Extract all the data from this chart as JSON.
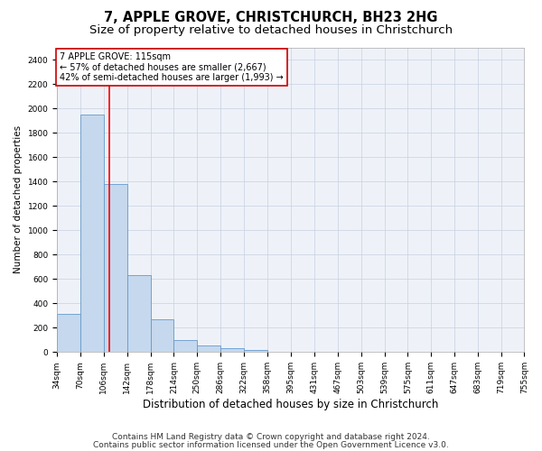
{
  "title1": "7, APPLE GROVE, CHRISTCHURCH, BH23 2HG",
  "title2": "Size of property relative to detached houses in Christchurch",
  "xlabel": "Distribution of detached houses by size in Christchurch",
  "ylabel": "Number of detached properties",
  "bar_values": [
    310,
    1950,
    1380,
    630,
    270,
    100,
    55,
    30,
    20,
    5,
    3,
    2,
    1,
    1,
    0,
    0,
    0,
    0,
    0,
    0
  ],
  "bin_edges": [
    34,
    70,
    106,
    142,
    178,
    214,
    250,
    286,
    322,
    358,
    395,
    431,
    467,
    503,
    539,
    575,
    611,
    647,
    683,
    719,
    755
  ],
  "tick_labels": [
    "34sqm",
    "70sqm",
    "106sqm",
    "142sqm",
    "178sqm",
    "214sqm",
    "250sqm",
    "286sqm",
    "322sqm",
    "358sqm",
    "395sqm",
    "431sqm",
    "467sqm",
    "503sqm",
    "539sqm",
    "575sqm",
    "611sqm",
    "647sqm",
    "683sqm",
    "719sqm",
    "755sqm"
  ],
  "bar_color": "#c5d8ed",
  "bar_edge_color": "#6699cc",
  "red_line_x": 115,
  "annotation_title": "7 APPLE GROVE: 115sqm",
  "annotation_line1": "← 57% of detached houses are smaller (2,667)",
  "annotation_line2": "42% of semi-detached houses are larger (1,993) →",
  "annotation_box_color": "#ffffff",
  "annotation_box_edge": "#cc0000",
  "ylim": [
    0,
    2500
  ],
  "yticks": [
    0,
    200,
    400,
    600,
    800,
    1000,
    1200,
    1400,
    1600,
    1800,
    2000,
    2200,
    2400
  ],
  "grid_color": "#c8d0e0",
  "footer1": "Contains HM Land Registry data © Crown copyright and database right 2024.",
  "footer2": "Contains public sector information licensed under the Open Government Licence v3.0.",
  "title1_fontsize": 10.5,
  "title2_fontsize": 9.5,
  "xlabel_fontsize": 8.5,
  "ylabel_fontsize": 7.5,
  "tick_fontsize": 6.5,
  "annot_fontsize": 7.0,
  "footer_fontsize": 6.5
}
